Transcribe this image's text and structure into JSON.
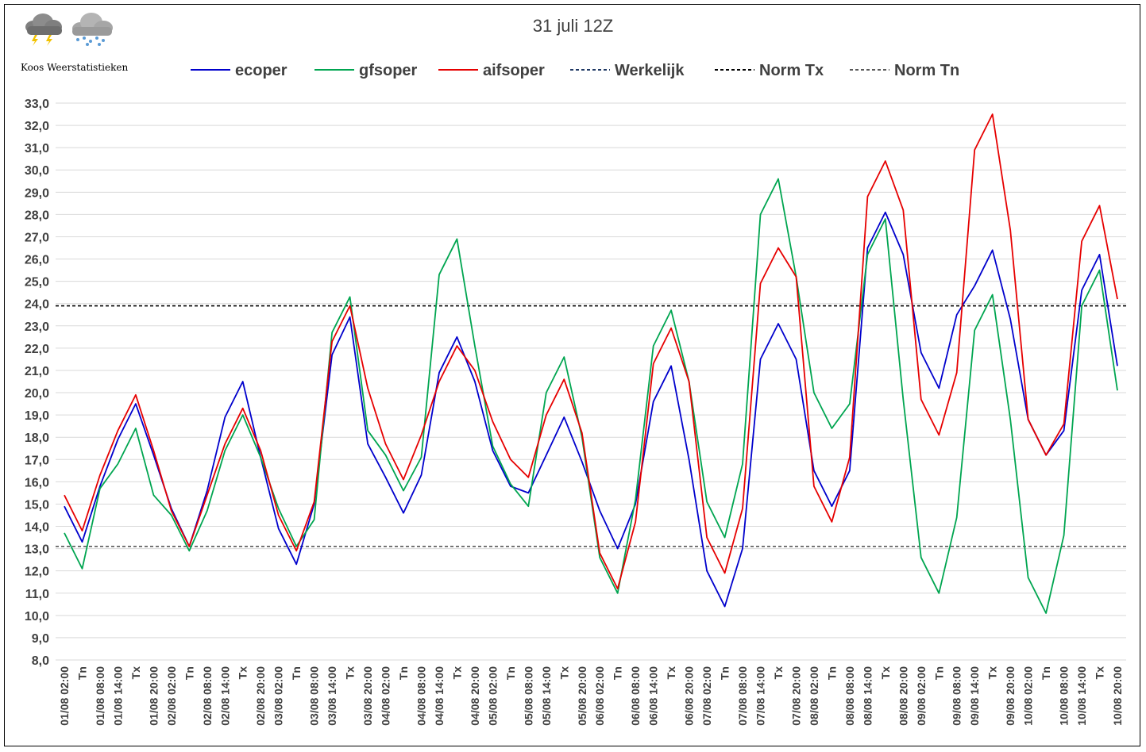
{
  "logo": {
    "text": "Koos Weerstatistieken",
    "icons": [
      "thunderstorm-cloud-icon",
      "snow-cloud-icon"
    ]
  },
  "chart_data": {
    "type": "line",
    "title": "31 juli 12Z",
    "xlabel": "",
    "ylabel": "",
    "ylim": [
      8.0,
      33.0
    ],
    "y_ticks": [
      "8,0",
      "9,0",
      "10,0",
      "11,0",
      "12,0",
      "13,0",
      "14,0",
      "15,0",
      "16,0",
      "17,0",
      "18,0",
      "19,0",
      "20,0",
      "21,0",
      "22,0",
      "23,0",
      "24,0",
      "25,0",
      "26,0",
      "27,0",
      "28,0",
      "29,0",
      "30,0",
      "31,0",
      "32,0",
      "33,0"
    ],
    "grid": true,
    "legend_position": "top",
    "categories": [
      "01/08 02:00",
      "Tn",
      "01/08 08:00",
      "01/08 14:00",
      "Tx",
      "01/08 20:00",
      "02/08 02:00",
      "Tn",
      "02/08 08:00",
      "02/08 14:00",
      "Tx",
      "02/08 20:00",
      "03/08 02:00",
      "Tn",
      "03/08 08:00",
      "03/08 14:00",
      "Tx",
      "03/08 20:00",
      "04/08 02:00",
      "Tn",
      "04/08 08:00",
      "04/08 14:00",
      "Tx",
      "04/08 20:00",
      "05/08 02:00",
      "Tn",
      "05/08 08:00",
      "05/08 14:00",
      "Tx",
      "05/08 20:00",
      "06/08 02:00",
      "Tn",
      "06/08 08:00",
      "06/08 14:00",
      "Tx",
      "06/08 20:00",
      "07/08 02:00",
      "Tn",
      "07/08 08:00",
      "07/08 14:00",
      "Tx",
      "07/08 20:00",
      "08/08 02:00",
      "Tn",
      "08/08 08:00",
      "08/08 14:00",
      "Tx",
      "08/08 20:00",
      "09/08 02:00",
      "Tn",
      "09/08 08:00",
      "09/08 14:00",
      "Tx",
      "09/08 20:00",
      "10/08 02:00",
      "Tn",
      "10/08 08:00",
      "10/08 14:00",
      "Tx",
      "10/08 20:00"
    ],
    "series": [
      {
        "name": "ecoper",
        "color": "#0000cc",
        "style": "solid",
        "values": [
          14.9,
          13.3,
          15.8,
          17.9,
          19.5,
          17.2,
          14.8,
          13.1,
          15.6,
          18.9,
          20.5,
          17.1,
          13.9,
          12.3,
          15.0,
          21.7,
          23.4,
          17.7,
          16.2,
          14.6,
          16.3,
          20.9,
          22.5,
          20.5,
          17.4,
          15.8,
          15.5,
          17.2,
          18.9,
          16.9,
          14.7,
          13.0,
          15.0,
          19.6,
          21.2,
          17.0,
          12.0,
          10.4,
          13.0,
          21.5,
          23.1,
          21.5,
          16.5,
          14.9,
          16.5,
          26.5,
          28.1,
          26.2,
          21.8,
          20.2,
          23.5,
          24.8,
          26.4,
          23.3,
          18.8,
          17.2,
          18.3,
          24.6,
          26.2,
          21.2
        ]
      },
      {
        "name": "gfsoper",
        "color": "#00a550",
        "style": "solid",
        "values": [
          13.7,
          12.1,
          15.7,
          16.8,
          18.4,
          15.4,
          14.5,
          12.9,
          14.7,
          17.4,
          19.0,
          17.1,
          14.8,
          13.1,
          14.3,
          22.7,
          24.3,
          18.3,
          17.2,
          15.6,
          17.1,
          25.3,
          26.9,
          22.1,
          17.6,
          15.9,
          14.9,
          20.0,
          21.6,
          18.0,
          12.6,
          11.0,
          15.2,
          22.1,
          23.7,
          20.5,
          15.1,
          13.5,
          16.8,
          28.0,
          29.6,
          25.2,
          20.0,
          18.4,
          19.5,
          26.2,
          27.8,
          19.7,
          12.6,
          11.0,
          14.4,
          22.8,
          24.4,
          18.8,
          11.7,
          10.1,
          13.6,
          23.9,
          25.5,
          20.1
        ]
      },
      {
        "name": "aifsoper",
        "color": "#e60000",
        "style": "solid",
        "values": [
          15.4,
          13.8,
          16.3,
          18.3,
          19.9,
          17.4,
          14.7,
          13.1,
          15.4,
          17.7,
          19.3,
          17.4,
          14.5,
          12.9,
          15.1,
          22.3,
          23.9,
          20.2,
          17.7,
          16.1,
          18.1,
          20.5,
          22.1,
          21.0,
          18.7,
          17.0,
          16.2,
          19.0,
          20.6,
          18.2,
          12.8,
          11.2,
          14.2,
          21.3,
          22.9,
          20.5,
          13.5,
          11.9,
          14.8,
          24.9,
          26.5,
          25.2,
          15.8,
          14.2,
          17.1,
          28.8,
          30.4,
          28.2,
          19.7,
          18.1,
          20.9,
          30.9,
          32.5,
          27.3,
          18.8,
          17.2,
          18.6,
          26.8,
          28.4,
          24.2
        ]
      }
    ],
    "reference_lines": [
      {
        "name": "Werkelijk",
        "color": "#1f3864",
        "style": "dashed",
        "value": null
      },
      {
        "name": "Norm Tx",
        "color": "#000000",
        "style": "dashed",
        "value": 23.9
      },
      {
        "name": "Norm Tn",
        "color": "#595959",
        "style": "dashed",
        "value": 13.1
      }
    ]
  }
}
